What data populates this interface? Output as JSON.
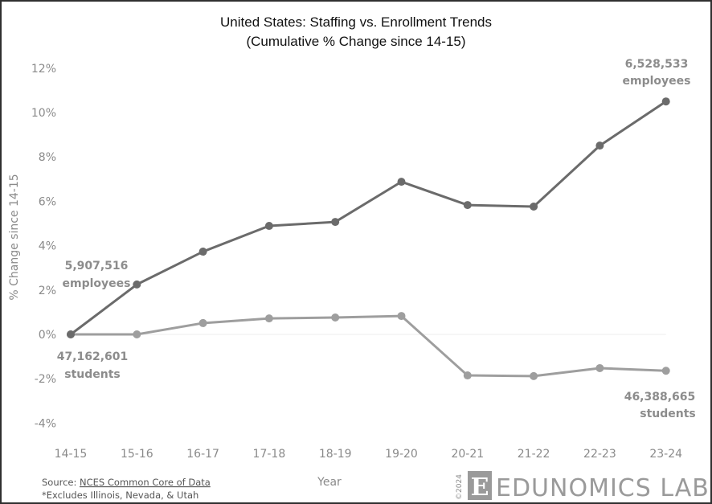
{
  "chart_data": {
    "type": "line",
    "title": "United States: Staffing vs. Enrollment Trends",
    "subtitle": "(Cumulative % Change since 14-15)",
    "xlabel": "Year",
    "ylabel": "% Change since 14-15",
    "categories": [
      "14-15",
      "15-16",
      "16-17",
      "17-18",
      "18-19",
      "19-20",
      "20-21",
      "21-22",
      "22-23",
      "23-24"
    ],
    "yticks": [
      "12%",
      "10%",
      "8%",
      "6%",
      "4%",
      "2%",
      "0%",
      "-2%",
      "-4%"
    ],
    "ylim": [
      -4,
      12
    ],
    "grid": false,
    "series": [
      {
        "name": "Employees",
        "color": "#6b6b6b",
        "values": [
          0.0,
          2.25,
          3.73,
          4.89,
          5.07,
          6.88,
          5.83,
          5.76,
          8.51,
          10.5
        ]
      },
      {
        "name": "Students",
        "color": "#9e9e9e",
        "values": [
          0.0,
          0.0,
          0.51,
          0.72,
          0.76,
          0.83,
          -1.85,
          -1.88,
          -1.52,
          -1.64
        ]
      }
    ],
    "annotations": [
      {
        "line1": "5,907,516",
        "line2": "employees",
        "at": "14-15"
      },
      {
        "line1": "47,162,601",
        "line2": "students",
        "at": "14-15"
      },
      {
        "line1": "6,528,533",
        "line2": "employees",
        "at": "23-24"
      },
      {
        "line1": "46,388,665",
        "line2": "students",
        "at": "23-24"
      }
    ]
  },
  "footer": {
    "source_prefix": "Source: ",
    "source_link": "NCES Common Core of Data",
    "note": "*Excludes Illinois, Nevada, & Utah",
    "copyright": "©2024",
    "logo_letter": "E",
    "logo_text": "EDUNOMICS LAB"
  }
}
